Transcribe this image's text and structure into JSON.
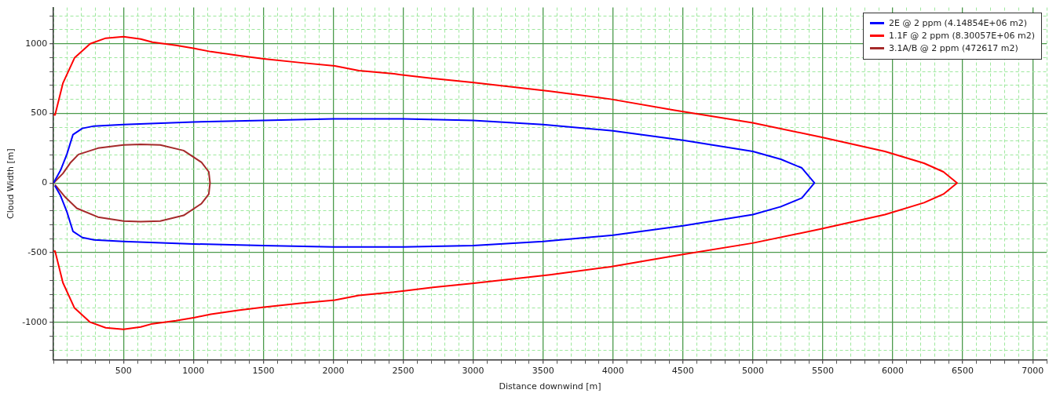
{
  "chart_data": {
    "type": "line",
    "xlabel": "Distance downwind [m]",
    "ylabel": "Cloud Width [m]",
    "xlim": [
      0,
      7100
    ],
    "ylim": [
      -1270,
      1260
    ],
    "xticks": [
      {
        "value": 0,
        "label": null
      },
      {
        "value": 100,
        "label": null
      },
      {
        "value": 200,
        "label": null
      },
      {
        "value": 300,
        "label": null
      },
      {
        "value": 400,
        "label": null
      },
      500,
      {
        "value": 600,
        "label": null
      },
      {
        "value": 700,
        "label": null
      },
      {
        "value": 800,
        "label": null
      },
      {
        "value": 900,
        "label": null
      },
      1000,
      {
        "value": 1100,
        "label": null
      },
      {
        "value": 1200,
        "label": null
      },
      {
        "value": 1300,
        "label": null
      },
      {
        "value": 1400,
        "label": null
      },
      1500,
      {
        "value": 1600,
        "label": null
      },
      {
        "value": 1700,
        "label": null
      },
      {
        "value": 1800,
        "label": null
      },
      {
        "value": 1900,
        "label": null
      },
      2000,
      {
        "value": 2100,
        "label": null
      },
      {
        "value": 2200,
        "label": null
      },
      {
        "value": 2300,
        "label": null
      },
      {
        "value": 2400,
        "label": null
      },
      2500,
      {
        "value": 2600,
        "label": null
      },
      {
        "value": 2700,
        "label": null
      },
      {
        "value": 2800,
        "label": null
      },
      {
        "value": 2900,
        "label": null
      },
      3000,
      {
        "value": 3100,
        "label": null
      },
      {
        "value": 3200,
        "label": null
      },
      {
        "value": 3300,
        "label": null
      },
      {
        "value": 3400,
        "label": null
      },
      3500,
      {
        "value": 3600,
        "label": null
      },
      {
        "value": 3700,
        "label": null
      },
      {
        "value": 3800,
        "label": null
      },
      {
        "value": 3900,
        "label": null
      },
      4000,
      {
        "value": 4100,
        "label": null
      },
      {
        "value": 4200,
        "label": null
      },
      {
        "value": 4300,
        "label": null
      },
      {
        "value": 4400,
        "label": null
      },
      4500,
      {
        "value": 4600,
        "label": null
      },
      {
        "value": 4700,
        "label": null
      },
      {
        "value": 4800,
        "label": null
      },
      {
        "value": 4900,
        "label": null
      },
      5000,
      {
        "value": 5100,
        "label": null
      },
      {
        "value": 5200,
        "label": null
      },
      {
        "value": 5300,
        "label": null
      },
      {
        "value": 5400,
        "label": null
      },
      5500,
      {
        "value": 5600,
        "label": null
      },
      {
        "value": 5700,
        "label": null
      },
      {
        "value": 5800,
        "label": null
      },
      {
        "value": 5900,
        "label": null
      },
      6000,
      {
        "value": 6100,
        "label": null
      },
      {
        "value": 6200,
        "label": null
      },
      {
        "value": 6300,
        "label": null
      },
      {
        "value": 6400,
        "label": null
      },
      6500,
      {
        "value": 6600,
        "label": null
      },
      {
        "value": 6700,
        "label": null
      },
      {
        "value": 6800,
        "label": null
      },
      {
        "value": 6900,
        "label": null
      },
      7000,
      {
        "value": 7100,
        "label": null
      }
    ],
    "yticks": [
      {
        "value": -1200,
        "label": null
      },
      {
        "value": -1100,
        "label": null
      },
      -1000,
      {
        "value": -900,
        "label": null
      },
      {
        "value": -800,
        "label": null
      },
      {
        "value": -700,
        "label": null
      },
      {
        "value": -600,
        "label": null
      },
      -500,
      {
        "value": -400,
        "label": null
      },
      {
        "value": -300,
        "label": null
      },
      {
        "value": -200,
        "label": null
      },
      {
        "value": -100,
        "label": null
      },
      0,
      {
        "value": 100,
        "label": null
      },
      {
        "value": 200,
        "label": null
      },
      {
        "value": 300,
        "label": null
      },
      {
        "value": 400,
        "label": null
      },
      500,
      {
        "value": 600,
        "label": null
      },
      {
        "value": 700,
        "label": null
      },
      {
        "value": 800,
        "label": null
      },
      {
        "value": 900,
        "label": null
      },
      1000,
      {
        "value": 1100,
        "label": null
      },
      {
        "value": 1200,
        "label": null
      }
    ],
    "grid": true,
    "legend": "top right",
    "marker": "none",
    "line_style": "solid",
    "series": [
      {
        "name": "2E @ 2 ppm (4.14854E+06 m2)",
        "color": "#0000ff",
        "x": [
          0,
          50,
          95,
          139,
          206,
          290,
          500,
          1000,
          1500,
          2000,
          2500,
          3000,
          3500,
          4000,
          4500,
          5000,
          5200,
          5350,
          5440,
          5350,
          5200,
          5000,
          4500,
          4000,
          3500,
          3000,
          2500,
          2000,
          1500,
          1000,
          500,
          290,
          206,
          139,
          95,
          50,
          10
        ],
        "values": [
          0,
          91,
          205,
          347,
          392,
          409,
          420,
          438,
          449,
          460,
          460,
          449,
          420,
          375,
          307,
          227,
          170,
          108,
          0,
          -108,
          -170,
          -227,
          -307,
          -375,
          -420,
          -449,
          -460,
          -460,
          -449,
          -438,
          -420,
          -409,
          -392,
          -347,
          -205,
          -91,
          -20
        ]
      },
      {
        "name": "1.1F @ 2 ppm (8.30057E+06 m2)",
        "color": "#ff0000",
        "x": [
          0,
          11,
          67,
          150,
          262,
          373,
          500,
          623,
          707,
          875,
          1008,
          1125,
          1320,
          1504,
          1766,
          2011,
          2183,
          2434,
          2518,
          2713,
          2992,
          3549,
          3983,
          4440,
          4997,
          5487,
          5944,
          6223,
          6362,
          6460,
          6362,
          6223,
          5944,
          5487,
          4997,
          4440,
          3983,
          3549,
          2992,
          2713,
          2518,
          2434,
          2183,
          2011,
          1766,
          1504,
          1320,
          1125,
          1008,
          875,
          707,
          623,
          500,
          373,
          262,
          150,
          67,
          11,
          0
        ],
        "values": [
          490,
          489,
          716,
          898,
          1000,
          1040,
          1051,
          1034,
          1011,
          989,
          966,
          943,
          915,
          892,
          864,
          841,
          807,
          784,
          773,
          750,
          722,
          659,
          602,
          523,
          432,
          330,
          227,
          142,
          80,
          0,
          -80,
          -142,
          -227,
          -330,
          -432,
          -523,
          -602,
          -659,
          -722,
          -750,
          -773,
          -784,
          -807,
          -841,
          -864,
          -892,
          -915,
          -943,
          -966,
          -989,
          -1011,
          -1034,
          -1051,
          -1040,
          -1000,
          -898,
          -716,
          -489,
          -490
        ]
      },
      {
        "name": "3.1A/B @ 2 ppm (472617 m2)",
        "color": "#a52a2a",
        "x": [
          0,
          67,
          123,
          178,
          318,
          500,
          623,
          763,
          930,
          1058,
          1110,
          1119,
          1110,
          1058,
          930,
          763,
          623,
          500,
          318,
          167,
          84,
          10
        ],
        "values": [
          0,
          68,
          148,
          205,
          250,
          273,
          278,
          273,
          233,
          148,
          80,
          0,
          -80,
          -148,
          -233,
          -273,
          -278,
          -273,
          -245,
          -182,
          -102,
          -12
        ]
      }
    ]
  }
}
